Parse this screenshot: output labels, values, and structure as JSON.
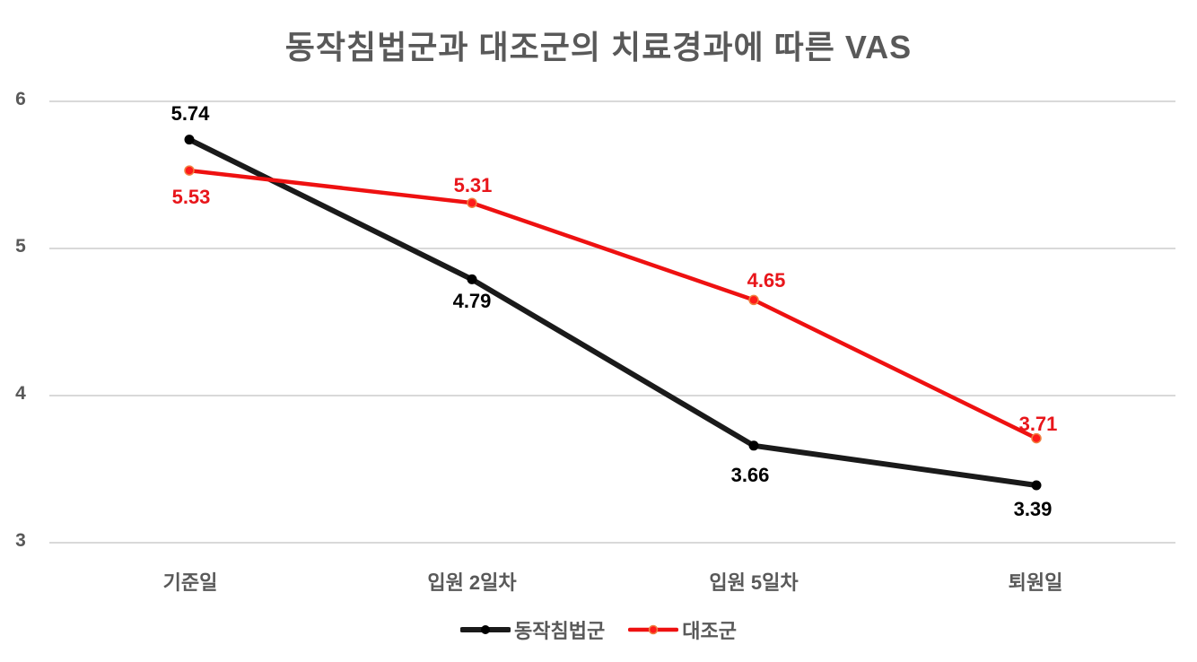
{
  "chart_data": {
    "type": "line",
    "title": "동작침법군과 대조군의 치료경과에 따른 VAS",
    "xlabel": "",
    "ylabel": "",
    "categories": [
      "기준일",
      "입원 2일차",
      "입원 5일차",
      "퇴원일"
    ],
    "series": [
      {
        "name": "동작침법군",
        "values": [
          5.74,
          4.79,
          3.66,
          3.39
        ],
        "color": "#1a1a1a",
        "marker_color": "#000000",
        "label_color": "#000000"
      },
      {
        "name": "대조군",
        "values": [
          5.53,
          5.31,
          4.65,
          3.71
        ],
        "color": "#ee1111",
        "marker_color": "#ff1a1a",
        "marker_border": "#f08040",
        "label_color": "#e8161b"
      }
    ],
    "ylim": [
      3,
      6
    ],
    "yticks": [
      "6",
      "5",
      "4",
      "3"
    ],
    "grid": true,
    "legend_position": "bottom",
    "data_labels": [
      [
        "5.74",
        "4.79",
        "3.66",
        "3.39"
      ],
      [
        "5.53",
        "5.31",
        "4.65",
        "3.71"
      ]
    ]
  },
  "legend": {
    "items": [
      "동작침법군",
      "대조군"
    ]
  }
}
